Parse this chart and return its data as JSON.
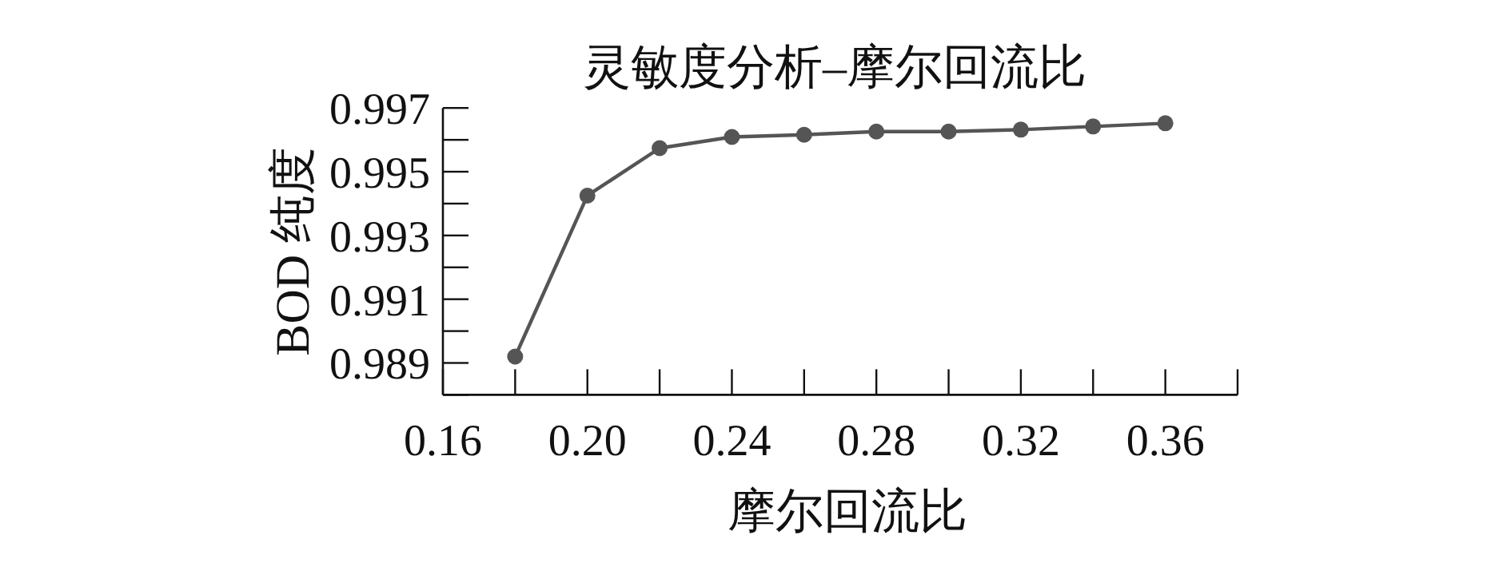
{
  "chart_data": {
    "type": "line",
    "title": "灵敏度分析–摩尔回流比",
    "xlabel": "摩尔回流比",
    "ylabel": "BOD 纯度",
    "x": [
      0.18,
      0.2,
      0.22,
      0.24,
      0.26,
      0.28,
      0.3,
      0.32,
      0.34,
      0.36
    ],
    "series": [
      {
        "color": "#555555",
        "values": [
          0.9892,
          0.99425,
          0.99574,
          0.99609,
          0.99616,
          0.99626,
          0.99626,
          0.99632,
          0.99642,
          0.99652
        ]
      }
    ],
    "xlim": [
      0.16,
      0.38
    ],
    "xticks": [
      0.16,
      {
        "value": 0.18,
        "label": null
      },
      "0.20",
      {
        "value": 0.22,
        "label": null
      },
      0.24,
      {
        "value": 0.26,
        "label": null
      },
      0.28,
      {
        "value": 0.3,
        "label": null
      },
      0.32,
      {
        "value": 0.34,
        "label": null
      },
      0.36,
      {
        "value": 0.38,
        "label": null
      }
    ],
    "ylim": [
      0.988,
      0.997
    ],
    "yticks": [
      {
        "value": 0.988,
        "label": null
      },
      0.989,
      {
        "value": 0.99,
        "label": null
      },
      0.991,
      {
        "value": 0.992,
        "label": null
      },
      0.993,
      {
        "value": 0.994,
        "label": null
      },
      0.995,
      {
        "value": 0.996,
        "label": null
      },
      0.997
    ],
    "marker": "circle",
    "line_style": "solid",
    "grid": false
  }
}
